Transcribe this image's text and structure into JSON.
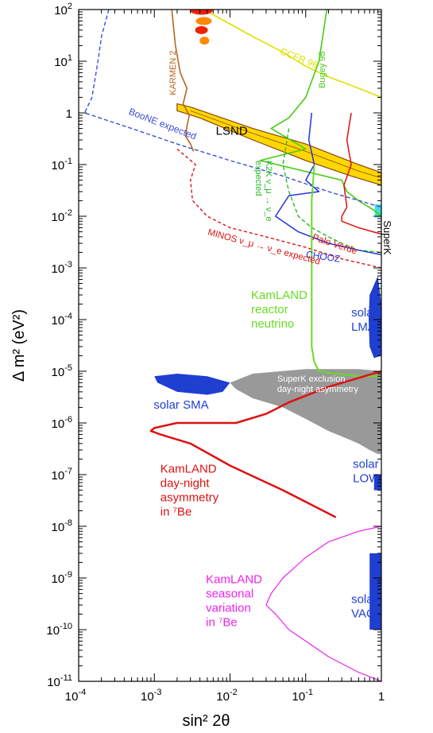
{
  "chart_data": {
    "type": "line",
    "title": "",
    "xlabel": "sin² 2θ",
    "ylabel": "Δ m² (eV²)",
    "x_scale": "log",
    "y_scale": "log",
    "xlim": [
      0.0001,
      1
    ],
    "ylim": [
      1e-11,
      100
    ],
    "x_ticks": [
      "10^-4",
      "10^-3",
      "10^-2",
      "10^-1",
      "1"
    ],
    "y_ticks": [
      "10^2",
      "10^1",
      "1",
      "10^-1",
      "10^-2",
      "10^-3",
      "10^-4",
      "10^-5",
      "10^-6",
      "10^-7",
      "10^-8",
      "10^-9",
      "10^-10",
      "10^-11"
    ],
    "colors": {
      "lsnd_fill": "#ffd700",
      "lsnd_edge": "#8b4513",
      "karmen": "#b8651e",
      "ccfr": "#e0e000",
      "bugey": "#44cc11",
      "boone": "#3a4fd6",
      "k2k": "#22bb22",
      "palo_verde": "#dd1111",
      "chooz": "#2233dd",
      "minos": "#dd1111",
      "kamland_reactor": "#66dd22",
      "solar": "#1f3fd0",
      "superk_excl": "#999999",
      "kamland_daynight": "#dd1111",
      "kamland_seasonal": "#ee22ee",
      "superk_box": "#44dddd"
    },
    "series": [
      {
        "name": "KARMEN 2",
        "x": [
          0.0017,
          0.0019,
          0.0022,
          0.0027,
          0.0024,
          0.0029,
          0.0027,
          0.0026,
          0.003,
          0.0032,
          0.0033
        ],
        "y": [
          100,
          20,
          6,
          3,
          1.5,
          0.9,
          0.55,
          0.35,
          0.25,
          0.2,
          0.18
        ]
      },
      {
        "name": "CCFR 96",
        "x": [
          0.0045,
          0.02,
          0.05,
          0.1,
          0.2,
          0.5,
          1
        ],
        "y": [
          100,
          30,
          15,
          8,
          5,
          3,
          2
        ]
      },
      {
        "name": "Bugey 95",
        "x": [
          0.19,
          0.15,
          0.1,
          0.06,
          0.035,
          0.1,
          0.025,
          0.3,
          0.35,
          0.5,
          0.8,
          1
        ],
        "y": [
          100,
          10,
          2,
          0.8,
          0.5,
          0.2,
          0.12,
          0.05,
          0.03,
          0.02,
          0.013,
          0.01
        ]
      },
      {
        "name": "BooNE expected",
        "x": [
          0.00025,
          0.0002,
          0.00018,
          0.00015,
          0.00012,
          0.0005,
          0.002,
          0.01,
          0.05,
          0.2,
          1
        ],
        "y": [
          100,
          30,
          10,
          2,
          1,
          0.5,
          0.25,
          0.12,
          0.06,
          0.03,
          0.015
        ]
      },
      {
        "name": "K2K ν_μ → ν_e expected",
        "x": [
          0.06,
          0.05,
          0.06,
          0.08,
          0.12,
          0.2,
          0.3,
          0.5,
          1
        ],
        "y": [
          0.5,
          0.1,
          0.03,
          0.01,
          0.006,
          0.004,
          0.003,
          0.0022,
          0.002
        ]
      },
      {
        "name": "Palo Verde",
        "x": [
          0.4,
          0.35,
          0.4,
          0.32,
          0.35,
          0.3,
          0.3,
          0.5,
          1
        ],
        "y": [
          1,
          0.3,
          0.1,
          0.04,
          0.015,
          0.01,
          0.008,
          0.006,
          0.0045
        ]
      },
      {
        "name": "CHOOZ",
        "x": [
          0.12,
          0.11,
          0.13,
          0.1,
          0.15,
          0.06,
          0.04,
          0.08,
          0.2,
          0.5,
          1
        ],
        "y": [
          1,
          0.3,
          0.1,
          0.05,
          0.03,
          0.025,
          0.01,
          0.005,
          0.003,
          0.0022,
          0.0018
        ]
      },
      {
        "name": "MINOS ν_μ → ν_e expected",
        "x": [
          0.002,
          0.0035,
          0.003,
          0.0032,
          0.005,
          0.01,
          0.03,
          0.1,
          0.3,
          1
        ],
        "y": [
          0.2,
          0.1,
          0.05,
          0.02,
          0.01,
          0.006,
          0.004,
          0.0025,
          0.0015,
          0.001
        ]
      },
      {
        "name": "KamLAND reactor neutrino",
        "x": [
          0.13,
          0.12,
          0.12,
          0.12,
          0.12,
          0.12,
          0.13,
          0.15,
          0.25,
          0.5,
          1
        ],
        "y": [
          0.1,
          0.02,
          0.002,
          0.0003,
          0.0001,
          3e-05,
          1.5e-05,
          1e-05,
          9e-06,
          8e-06,
          8e-06
        ]
      },
      {
        "name": "KamLAND day-night asymmetry in ⁷Be",
        "x": [
          0.25,
          0.05,
          0.01,
          0.003,
          0.0012,
          0.0009,
          0.001,
          0.002,
          0.008,
          0.012,
          0.03,
          0.06,
          0.2,
          1
        ],
        "y": [
          1.5e-08,
          5e-08,
          1.5e-07,
          4e-07,
          6e-07,
          7e-07,
          8e-07,
          1e-06,
          1e-06,
          1e-06,
          1.5e-06,
          2.5e-06,
          5e-06,
          1e-05
        ]
      },
      {
        "name": "KamLAND seasonal variation in ⁷Be",
        "x": [
          1,
          0.5,
          0.2,
          0.1,
          0.05,
          0.035,
          0.03,
          0.04,
          0.06,
          0.1,
          0.2,
          0.5,
          1
        ],
        "y": [
          1e-08,
          8e-09,
          5e-09,
          2.5e-09,
          1e-09,
          5e-10,
          3e-10,
          2e-10,
          1e-10,
          6e-11,
          3e-11,
          1.5e-11,
          1e-11
        ]
      }
    ],
    "regions": [
      {
        "name": "LSND",
        "x": [
          0.002,
          0.003,
          0.02,
          0.1,
          0.5,
          1,
          1,
          0.4,
          0.1,
          0.02,
          0.004,
          0.002
        ],
        "y": [
          1.5,
          1.3,
          0.5,
          0.25,
          0.1,
          0.07,
          0.04,
          0.06,
          0.12,
          0.3,
          0.8,
          1.1
        ]
      },
      {
        "name": "SuperK exclusion day-night asymmetry",
        "x": [
          0.01,
          0.02,
          0.1,
          0.5,
          1,
          1,
          0.9,
          0.7,
          0.5,
          0.35,
          0.2,
          0.1,
          0.05,
          0.02,
          0.012
        ],
        "y": [
          6e-06,
          9e-06,
          1.1e-05,
          1.1e-05,
          1e-05,
          2.5e-07,
          2.5e-07,
          3e-07,
          4e-07,
          5e-07,
          7e-07,
          1.2e-06,
          2e-06,
          3e-06,
          4.5e-06
        ]
      },
      {
        "name": "solar SMA",
        "x": [
          0.001,
          0.002,
          0.005,
          0.01,
          0.008,
          0.005,
          0.002,
          0.0011
        ],
        "y": [
          8e-06,
          9e-06,
          8e-06,
          6e-06,
          4e-06,
          3.5e-06,
          4e-06,
          6e-06
        ]
      },
      {
        "name": "solar LMA",
        "x": [
          0.7,
          0.9,
          1,
          1,
          0.8,
          0.7,
          0.68
        ],
        "y": [
          0.0003,
          0.0007,
          0.0002,
          2e-05,
          1.8e-05,
          3e-05,
          0.0001
        ]
      },
      {
        "name": "solar LOW",
        "x": [
          0.8,
          1,
          1,
          0.8
        ],
        "y": [
          1e-07,
          1e-07,
          5e-08,
          5e-08
        ]
      },
      {
        "name": "solar VAC",
        "x": [
          0.7,
          1,
          1,
          0.7
        ],
        "y": [
          3e-09,
          3e-09,
          1e-10,
          1e-10
        ]
      }
    ],
    "annotations": [
      {
        "text": "KARMEN 2"
      },
      {
        "text": "CCFR 96"
      },
      {
        "text": "Bugey 95"
      },
      {
        "text": "LSND"
      },
      {
        "text": "BooNE expected"
      },
      {
        "text": "K2K ν_μ → ν_e expected"
      },
      {
        "text": "Palo Verde"
      },
      {
        "text": "CHOOZ"
      },
      {
        "text": "MINOS ν_μ → ν_e expected"
      },
      {
        "text": "SuperK"
      },
      {
        "text": "KamLAND reactor neutrino"
      },
      {
        "text": "solar LMA"
      },
      {
        "text": "solar SMA"
      },
      {
        "text": "SuperK exclusion day-night asymmetry"
      },
      {
        "text": "solar LOW"
      },
      {
        "text": "KamLAND day-night asymmetry in ⁷Be"
      },
      {
        "text": "KamLAND seasonal variation in ⁷Be"
      },
      {
        "text": "solar VAC"
      }
    ],
    "grid": false,
    "legend": "none"
  }
}
